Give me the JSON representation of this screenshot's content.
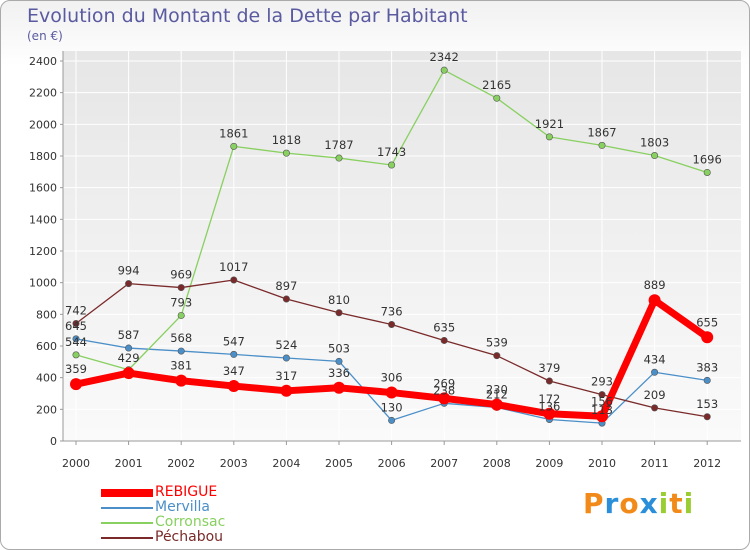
{
  "title": "Evolution du Montant de la Dette par Habitant",
  "subtitle": "(en €)",
  "chart_data": {
    "type": "line",
    "title": "Evolution du Montant de la Dette par Habitant",
    "subtitle": "(en €)",
    "categories": [
      "2000",
      "2001",
      "2002",
      "2003",
      "2004",
      "2005",
      "2006",
      "2007",
      "2008",
      "2009",
      "2010",
      "2011",
      "2012"
    ],
    "y_ticks": [
      0,
      200,
      400,
      600,
      800,
      1000,
      1200,
      1400,
      1600,
      1800,
      2000,
      2200,
      2400
    ],
    "ylim": [
      0,
      2400
    ],
    "grid": true,
    "legend_position": "bottom-left",
    "series": [
      {
        "name": "REBIGUE",
        "color": "#ff0000",
        "emphasis": true,
        "values": [
          359,
          429,
          381,
          347,
          317,
          336,
          306,
          269,
          230,
          172,
          156,
          889,
          655
        ],
        "labels": [
          "359",
          "429",
          "381",
          "347",
          "317",
          "336",
          "306",
          "269",
          "230",
          "172",
          "156",
          "889",
          "655"
        ]
      },
      {
        "name": "Mervilla",
        "color": "#4b8fc8",
        "emphasis": false,
        "values": [
          645,
          587,
          568,
          547,
          524,
          503,
          130,
          238,
          212,
          136,
          113,
          434,
          383
        ],
        "labels": [
          "645",
          "587",
          "568",
          "547",
          "524",
          "503",
          "130",
          "238",
          "212",
          "136",
          "113",
          "434",
          "383"
        ]
      },
      {
        "name": "Corronsac",
        "color": "#88d060",
        "emphasis": false,
        "values": [
          544,
          450,
          793,
          1861,
          1818,
          1787,
          1743,
          2342,
          2165,
          1921,
          1867,
          1803,
          1696
        ],
        "labels": [
          "544",
          "",
          "793",
          "1861",
          "1818",
          "1787",
          "1743",
          "2342",
          "2165",
          "1921",
          "1867",
          "1803",
          "1696"
        ]
      },
      {
        "name": "Péchabou",
        "color": "#7a2a2a",
        "emphasis": false,
        "values": [
          742,
          994,
          969,
          1017,
          897,
          810,
          736,
          635,
          539,
          379,
          293,
          209,
          153
        ],
        "labels": [
          "742",
          "994",
          "969",
          "1017",
          "897",
          "810",
          "736",
          "635",
          "539",
          "379",
          "293",
          "209",
          "153"
        ]
      }
    ]
  },
  "logo": {
    "letters": [
      "P",
      "r",
      "o",
      "x",
      "i",
      "t",
      "i"
    ],
    "colors": [
      "#f28a1a",
      "#2a8fd8",
      "#f28a1a",
      "#2a8fd8",
      "#9acd32",
      "#f28a1a",
      "#9acd32"
    ]
  }
}
